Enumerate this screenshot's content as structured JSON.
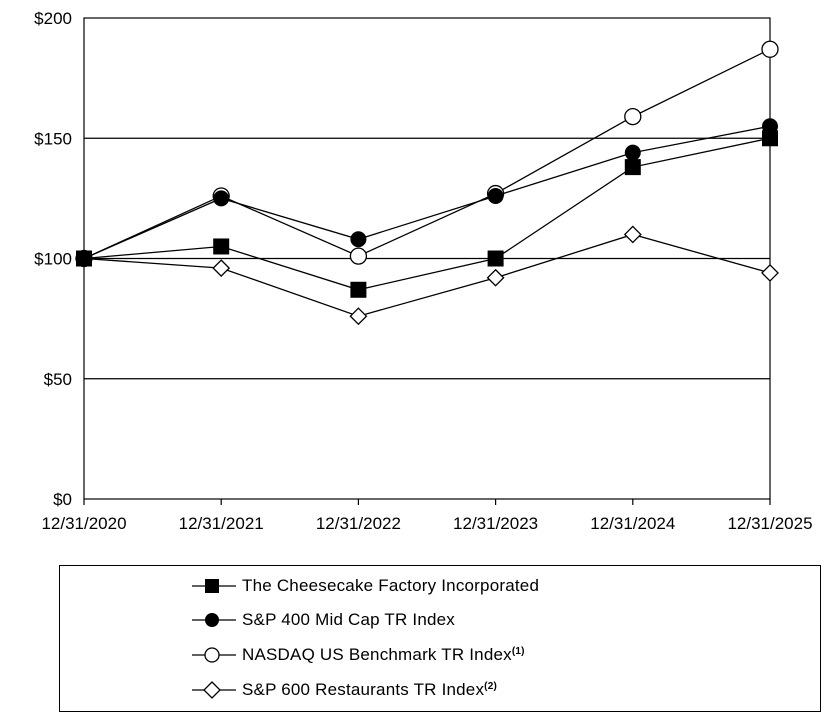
{
  "chart_data": {
    "type": "line",
    "title": "",
    "xlabel": "",
    "ylabel": "",
    "categories": [
      "12/31/2020",
      "12/31/2021",
      "12/31/2022",
      "12/31/2023",
      "12/31/2024",
      "12/31/2025"
    ],
    "yticks": [
      "$0",
      "$50",
      "$100",
      "$150",
      "$200"
    ],
    "ylim": [
      0,
      200
    ],
    "gridlines": [
      50,
      100,
      150
    ],
    "legend_position": "bottom",
    "series": [
      {
        "name": "The Cheesecake Factory Incorporated",
        "footnote": "",
        "marker": "filled-square",
        "values": [
          100,
          105,
          87,
          100,
          138,
          150
        ]
      },
      {
        "name": "S&P 400 Mid Cap TR Index",
        "footnote": "",
        "marker": "filled-circle",
        "values": [
          100,
          125,
          108,
          126,
          144,
          155
        ]
      },
      {
        "name": "NASDAQ US Benchmark TR Index",
        "footnote": "(1)",
        "marker": "open-circle",
        "values": [
          100,
          126,
          101,
          127,
          159,
          187
        ]
      },
      {
        "name": "S&P 600 Restaurants TR Index",
        "footnote": "(2)",
        "marker": "open-diamond",
        "values": [
          100,
          96,
          76,
          92,
          110,
          94
        ]
      }
    ]
  }
}
